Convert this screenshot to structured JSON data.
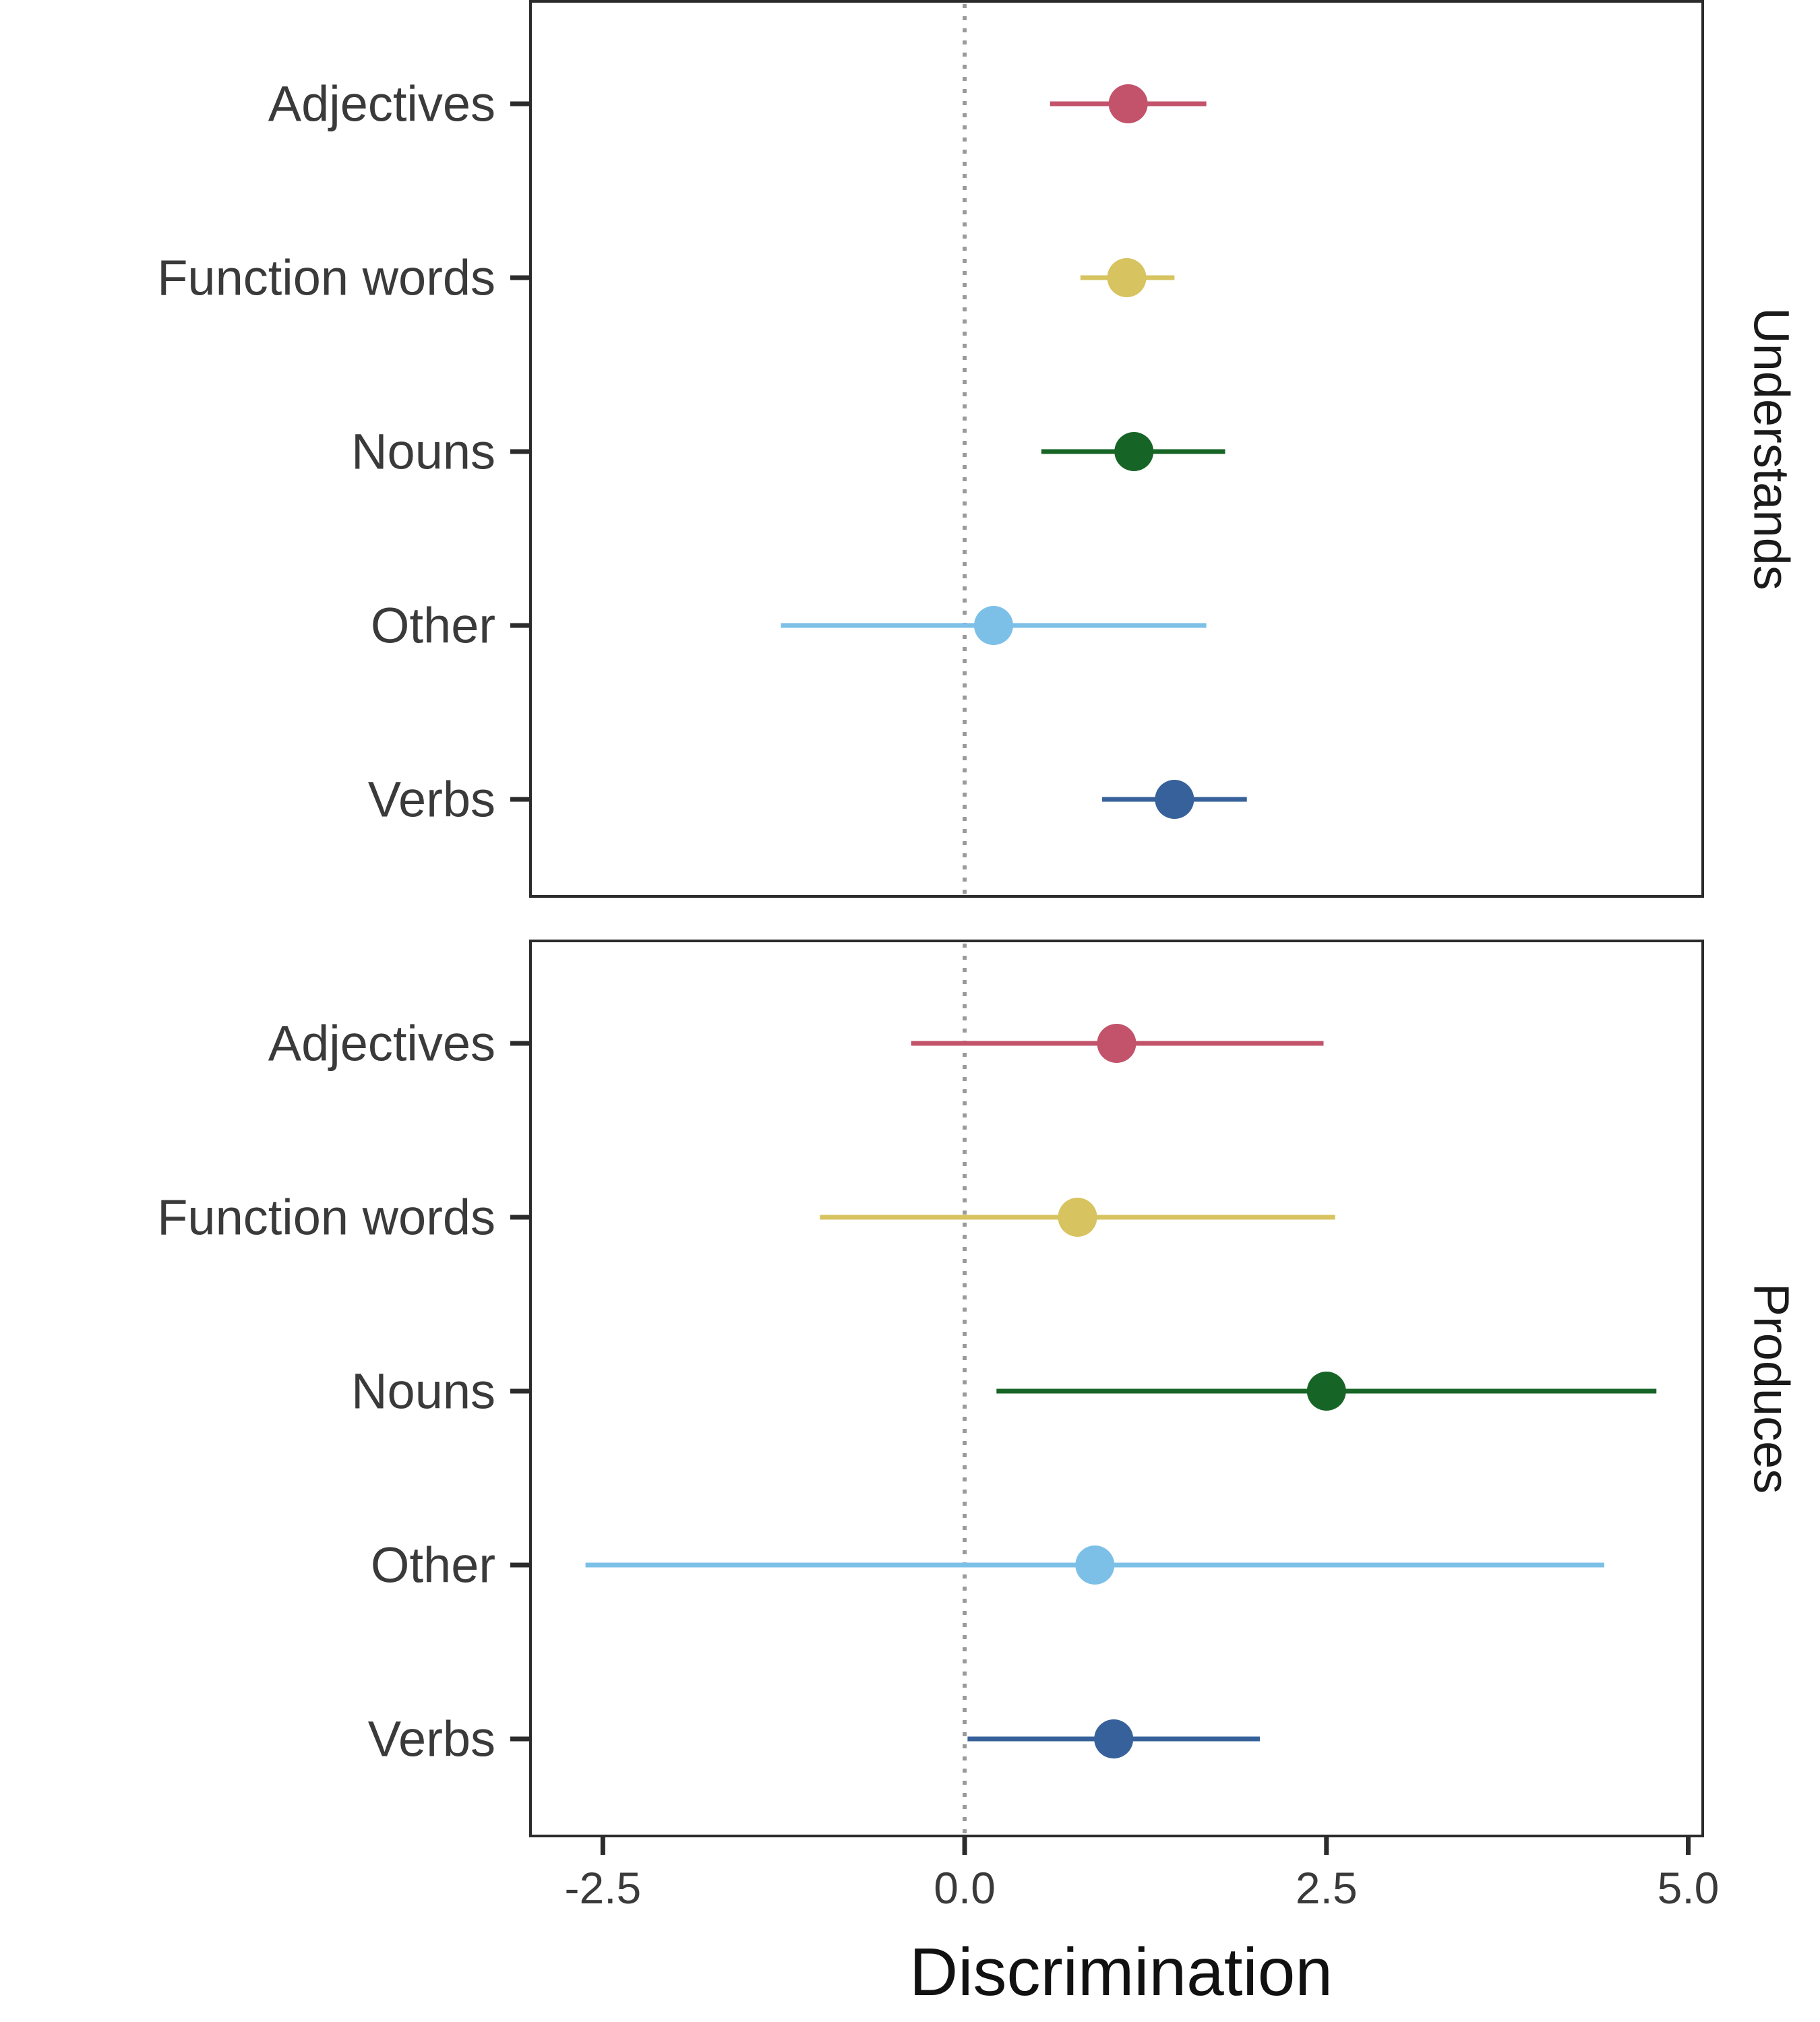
{
  "chart_data": {
    "type": "scatter",
    "xlabel": "Discrimination",
    "xlim": [
      -3.0,
      5.1
    ],
    "x_ticks": [
      -2.5,
      0.0,
      2.5,
      5.0
    ],
    "x_tick_labels": [
      "-2.5",
      "0.0",
      "2.5",
      "5.0"
    ],
    "reference_line": {
      "x": 0,
      "style": "dotted"
    },
    "categories": [
      "Adjectives",
      "Function words",
      "Nouns",
      "Other",
      "Verbs"
    ],
    "colors": {
      "Adjectives": "#c2536b",
      "Function words": "#d7c35f",
      "Nouns": "#176526",
      "Other": "#7cc0e8",
      "Verbs": "#37619a"
    },
    "panels": [
      {
        "strip_label": "Understands",
        "points": [
          {
            "category": "Adjectives",
            "estimate": 1.13,
            "lower": 0.59,
            "upper": 1.67
          },
          {
            "category": "Function words",
            "estimate": 1.12,
            "lower": 0.8,
            "upper": 1.45
          },
          {
            "category": "Nouns",
            "estimate": 1.17,
            "lower": 0.53,
            "upper": 1.8
          },
          {
            "category": "Other",
            "estimate": 0.2,
            "lower": -1.27,
            "upper": 1.67
          },
          {
            "category": "Verbs",
            "estimate": 1.45,
            "lower": 0.95,
            "upper": 1.95
          }
        ]
      },
      {
        "strip_label": "Produces",
        "points": [
          {
            "category": "Adjectives",
            "estimate": 1.05,
            "lower": -0.37,
            "upper": 2.48
          },
          {
            "category": "Function words",
            "estimate": 0.78,
            "lower": -1.0,
            "upper": 2.56
          },
          {
            "category": "Nouns",
            "estimate": 2.5,
            "lower": 0.22,
            "upper": 4.78
          },
          {
            "category": "Other",
            "estimate": 0.9,
            "lower": -2.62,
            "upper": 4.42
          },
          {
            "category": "Verbs",
            "estimate": 1.03,
            "lower": 0.02,
            "upper": 2.04
          }
        ]
      }
    ]
  }
}
